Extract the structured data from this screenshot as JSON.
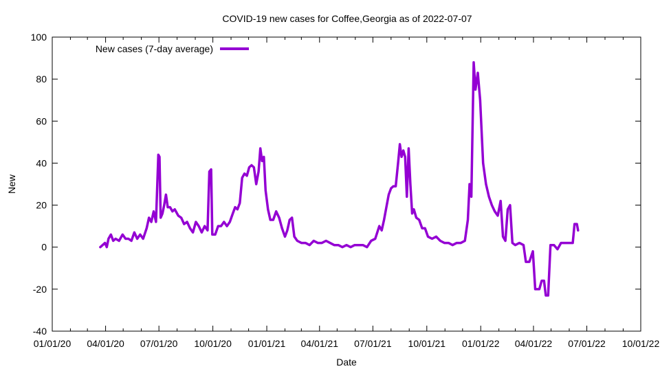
{
  "chart_data": {
    "type": "line",
    "title": "COVID-19 new cases for Coffee,Georgia as of 2022-07-07",
    "xlabel": "Date",
    "ylabel": "New",
    "xlim": [
      "2020-01-01",
      "2022-10-01"
    ],
    "ylim": [
      -40,
      100
    ],
    "x_ticks": [
      "2020-01-01",
      "2020-04-01",
      "2020-07-01",
      "2020-10-01",
      "2021-01-01",
      "2021-04-01",
      "2021-07-01",
      "2021-10-01",
      "2022-01-01",
      "2022-04-01",
      "2022-07-01",
      "2022-10-01"
    ],
    "x_tick_labels": [
      "01/01/20",
      "04/01/20",
      "07/01/20",
      "10/01/20",
      "01/01/21",
      "04/01/21",
      "07/01/21",
      "10/01/21",
      "01/01/22",
      "04/01/22",
      "07/01/22",
      "10/01/22"
    ],
    "y_ticks": [
      -40,
      -20,
      0,
      20,
      40,
      60,
      80,
      100
    ],
    "y_tick_labels": [
      "-40",
      "-20",
      "0",
      "20",
      "40",
      "60",
      "80",
      "100"
    ],
    "grid": false,
    "legend": {
      "position": "top-left",
      "entries": [
        "New cases (7-day average)"
      ]
    },
    "series": [
      {
        "name": "New cases (7-day average)",
        "color": "#9400d3",
        "points": [
          [
            "2020-03-23",
            0
          ],
          [
            "2020-03-27",
            1
          ],
          [
            "2020-03-31",
            2
          ],
          [
            "2020-04-03",
            0
          ],
          [
            "2020-04-06",
            4
          ],
          [
            "2020-04-10",
            6
          ],
          [
            "2020-04-14",
            3
          ],
          [
            "2020-04-18",
            4
          ],
          [
            "2020-04-24",
            3
          ],
          [
            "2020-04-30",
            6
          ],
          [
            "2020-05-05",
            4
          ],
          [
            "2020-05-10",
            4
          ],
          [
            "2020-05-15",
            3
          ],
          [
            "2020-05-20",
            7
          ],
          [
            "2020-05-25",
            4
          ],
          [
            "2020-05-30",
            6
          ],
          [
            "2020-06-04",
            4
          ],
          [
            "2020-06-10",
            9
          ],
          [
            "2020-06-14",
            14
          ],
          [
            "2020-06-18",
            12
          ],
          [
            "2020-06-22",
            17
          ],
          [
            "2020-06-26",
            12
          ],
          [
            "2020-06-30",
            44
          ],
          [
            "2020-07-02",
            43
          ],
          [
            "2020-07-04",
            14
          ],
          [
            "2020-07-07",
            16
          ],
          [
            "2020-07-10",
            20
          ],
          [
            "2020-07-13",
            25
          ],
          [
            "2020-07-16",
            19
          ],
          [
            "2020-07-20",
            19
          ],
          [
            "2020-07-24",
            17
          ],
          [
            "2020-07-28",
            18
          ],
          [
            "2020-08-03",
            15
          ],
          [
            "2020-08-08",
            14
          ],
          [
            "2020-08-13",
            11
          ],
          [
            "2020-08-18",
            12
          ],
          [
            "2020-08-23",
            9
          ],
          [
            "2020-08-28",
            7
          ],
          [
            "2020-09-02",
            12
          ],
          [
            "2020-09-07",
            10
          ],
          [
            "2020-09-12",
            7
          ],
          [
            "2020-09-17",
            10
          ],
          [
            "2020-09-22",
            8
          ],
          [
            "2020-09-25",
            36
          ],
          [
            "2020-09-28",
            37
          ],
          [
            "2020-09-30",
            6
          ],
          [
            "2020-10-05",
            6
          ],
          [
            "2020-10-10",
            10
          ],
          [
            "2020-10-15",
            10
          ],
          [
            "2020-10-20",
            12
          ],
          [
            "2020-10-25",
            10
          ],
          [
            "2020-10-30",
            12
          ],
          [
            "2020-11-04",
            16
          ],
          [
            "2020-11-08",
            19
          ],
          [
            "2020-11-12",
            18
          ],
          [
            "2020-11-16",
            21
          ],
          [
            "2020-11-20",
            33
          ],
          [
            "2020-11-24",
            35
          ],
          [
            "2020-11-28",
            34
          ],
          [
            "2020-12-02",
            38
          ],
          [
            "2020-12-06",
            39
          ],
          [
            "2020-12-10",
            38
          ],
          [
            "2020-12-14",
            30
          ],
          [
            "2020-12-18",
            36
          ],
          [
            "2020-12-21",
            47
          ],
          [
            "2020-12-24",
            41
          ],
          [
            "2020-12-27",
            43
          ],
          [
            "2020-12-30",
            27
          ],
          [
            "2021-01-03",
            18
          ],
          [
            "2021-01-07",
            13
          ],
          [
            "2021-01-12",
            13
          ],
          [
            "2021-01-17",
            17
          ],
          [
            "2021-01-22",
            14
          ],
          [
            "2021-01-27",
            9
          ],
          [
            "2021-02-01",
            5
          ],
          [
            "2021-02-05",
            8
          ],
          [
            "2021-02-09",
            13
          ],
          [
            "2021-02-13",
            14
          ],
          [
            "2021-02-17",
            5
          ],
          [
            "2021-02-22",
            3
          ],
          [
            "2021-03-01",
            2
          ],
          [
            "2021-03-08",
            2
          ],
          [
            "2021-03-15",
            1
          ],
          [
            "2021-03-22",
            3
          ],
          [
            "2021-03-29",
            2
          ],
          [
            "2021-04-05",
            2
          ],
          [
            "2021-04-12",
            3
          ],
          [
            "2021-04-19",
            2
          ],
          [
            "2021-04-26",
            1
          ],
          [
            "2021-05-03",
            1
          ],
          [
            "2021-05-10",
            0
          ],
          [
            "2021-05-17",
            1
          ],
          [
            "2021-05-24",
            0
          ],
          [
            "2021-05-31",
            1
          ],
          [
            "2021-06-07",
            1
          ],
          [
            "2021-06-14",
            1
          ],
          [
            "2021-06-21",
            0
          ],
          [
            "2021-06-28",
            3
          ],
          [
            "2021-07-05",
            4
          ],
          [
            "2021-07-12",
            10
          ],
          [
            "2021-07-16",
            8
          ],
          [
            "2021-07-20",
            13
          ],
          [
            "2021-07-24",
            19
          ],
          [
            "2021-07-28",
            25
          ],
          [
            "2021-08-01",
            28
          ],
          [
            "2021-08-05",
            29
          ],
          [
            "2021-08-09",
            29
          ],
          [
            "2021-08-13",
            40
          ],
          [
            "2021-08-16",
            49
          ],
          [
            "2021-08-19",
            43
          ],
          [
            "2021-08-22",
            46
          ],
          [
            "2021-08-25",
            43
          ],
          [
            "2021-08-28",
            24
          ],
          [
            "2021-08-31",
            47
          ],
          [
            "2021-09-03",
            30
          ],
          [
            "2021-09-06",
            16
          ],
          [
            "2021-09-09",
            18
          ],
          [
            "2021-09-13",
            14
          ],
          [
            "2021-09-18",
            13
          ],
          [
            "2021-09-23",
            9
          ],
          [
            "2021-09-28",
            9
          ],
          [
            "2021-10-03",
            5
          ],
          [
            "2021-10-10",
            4
          ],
          [
            "2021-10-17",
            5
          ],
          [
            "2021-10-24",
            3
          ],
          [
            "2021-10-31",
            2
          ],
          [
            "2021-11-07",
            2
          ],
          [
            "2021-11-14",
            1
          ],
          [
            "2021-11-21",
            2
          ],
          [
            "2021-11-28",
            2
          ],
          [
            "2021-12-05",
            3
          ],
          [
            "2021-12-10",
            13
          ],
          [
            "2021-12-13",
            30
          ],
          [
            "2021-12-16",
            24
          ],
          [
            "2021-12-20",
            88
          ],
          [
            "2021-12-23",
            75
          ],
          [
            "2021-12-27",
            83
          ],
          [
            "2021-12-31",
            70
          ],
          [
            "2022-01-05",
            40
          ],
          [
            "2022-01-10",
            30
          ],
          [
            "2022-01-15",
            24
          ],
          [
            "2022-01-20",
            20
          ],
          [
            "2022-01-25",
            17
          ],
          [
            "2022-01-30",
            15
          ],
          [
            "2022-02-04",
            22
          ],
          [
            "2022-02-08",
            5
          ],
          [
            "2022-02-12",
            3
          ],
          [
            "2022-02-16",
            18
          ],
          [
            "2022-02-20",
            20
          ],
          [
            "2022-02-24",
            2
          ],
          [
            "2022-03-01",
            1
          ],
          [
            "2022-03-08",
            2
          ],
          [
            "2022-03-15",
            1
          ],
          [
            "2022-03-19",
            -7
          ],
          [
            "2022-03-25",
            -7
          ],
          [
            "2022-03-31",
            -2
          ],
          [
            "2022-04-04",
            -20
          ],
          [
            "2022-04-11",
            -20
          ],
          [
            "2022-04-15",
            -16
          ],
          [
            "2022-04-19",
            -16
          ],
          [
            "2022-04-22",
            -23
          ],
          [
            "2022-04-26",
            -23
          ],
          [
            "2022-04-30",
            1
          ],
          [
            "2022-05-06",
            1
          ],
          [
            "2022-05-12",
            -1
          ],
          [
            "2022-05-18",
            2
          ],
          [
            "2022-05-24",
            2
          ],
          [
            "2022-06-01",
            2
          ],
          [
            "2022-06-07",
            2
          ],
          [
            "2022-06-10",
            11
          ],
          [
            "2022-06-14",
            11
          ],
          [
            "2022-06-16",
            8
          ]
        ]
      }
    ]
  }
}
